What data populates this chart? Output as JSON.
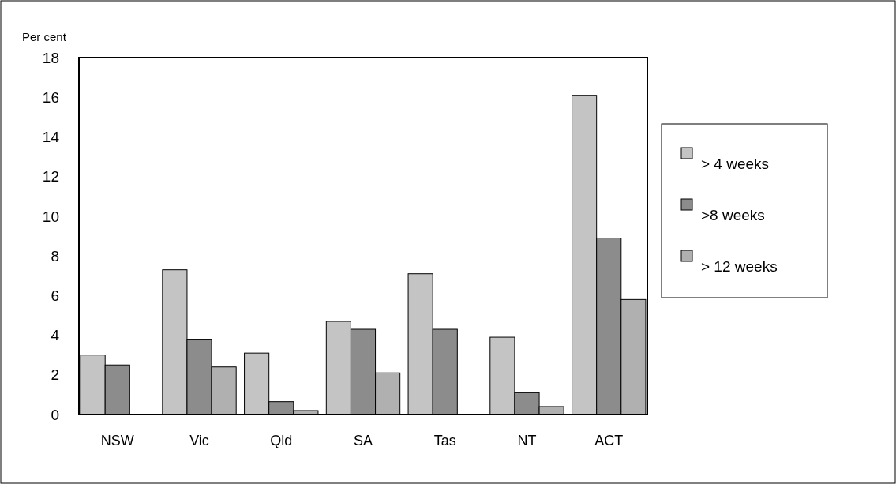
{
  "chart_data": {
    "type": "bar",
    "ylabel": "Per cent",
    "categories": [
      "NSW",
      "Vic",
      "Qld",
      "SA",
      "Tas",
      "NT",
      "ACT"
    ],
    "series": [
      {
        "name": "> 4 weeks",
        "color": "#c4c4c4",
        "values": [
          3.0,
          7.3,
          3.1,
          4.7,
          7.1,
          3.9,
          16.1
        ]
      },
      {
        "name": ">8 weeks",
        "color": "#8c8c8c",
        "values": [
          2.5,
          3.8,
          0.65,
          4.3,
          4.3,
          1.1,
          8.9
        ]
      },
      {
        "name": "> 12 weeks",
        "color": "#b0b0b0",
        "values": [
          null,
          2.4,
          0.2,
          2.1,
          null,
          0.4,
          5.8
        ]
      }
    ],
    "ylim": [
      0,
      18
    ],
    "yticks": [
      0,
      2,
      4,
      6,
      8,
      10,
      12,
      14,
      16,
      18
    ],
    "grid": false,
    "legend": "right"
  }
}
